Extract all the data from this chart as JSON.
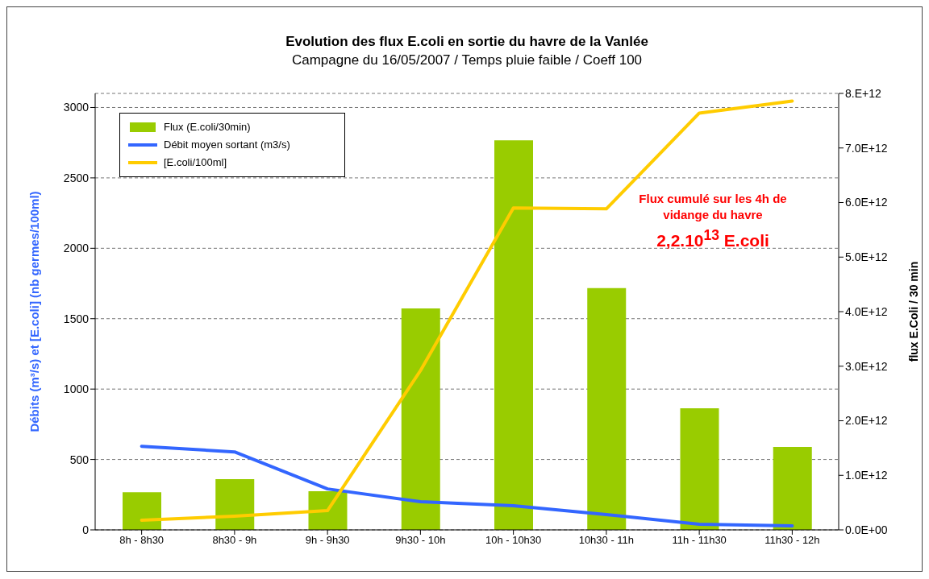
{
  "chart_data": {
    "type": "bar",
    "title": "Evolution des flux E.coli en sortie du havre de la Vanlée",
    "subtitle": "Campagne du 16/05/2007  / Temps pluie faible / Coeff 100",
    "ylabel": "Débits (m³/s) et [E.coli] (nb germes/100ml)",
    "y2label": "flux E.Coli / 30 min",
    "categories": [
      "8h - 8h30",
      "8h30 - 9h",
      "9h - 9h30",
      "9h30 - 10h",
      "10h - 10h30",
      "10h30 - 11h",
      "11h - 11h30",
      "11h30 - 12h"
    ],
    "series": [
      {
        "name": "Flux (E.coli/30min)",
        "axis": "y2",
        "color": "#99cc00",
        "values": [
          690000000000,
          930000000000,
          710000000000,
          4060000000000,
          7140000000000,
          4430000000000,
          2230000000000,
          1520000000000
        ]
      },
      {
        "name": "Débit moyen sortant (m3/s)",
        "type": "line",
        "color": "#3366ff",
        "values": [
          594,
          554,
          291,
          200,
          171,
          109,
          40,
          29
        ]
      },
      {
        "name": "[E.coli/100ml]",
        "type": "line",
        "color": "#ffcc00",
        "values": [
          69,
          97,
          137,
          1131,
          2286,
          2280,
          2960,
          3046
        ]
      }
    ],
    "ylim": [
      0,
      3100
    ],
    "yticks": [
      0,
      500,
      1000,
      1500,
      2000,
      2500,
      3000
    ],
    "y2lim": [
      0,
      8000000000000
    ],
    "y2ticks": [
      {
        "value": 0,
        "label": "0.0E+00"
      },
      {
        "value": 1000000000000,
        "label": "1.0E+12"
      },
      {
        "value": 2000000000000,
        "label": "2.0E+12"
      },
      {
        "value": 3000000000000,
        "label": "3.0E+12"
      },
      {
        "value": 4000000000000,
        "label": "4.0E+12"
      },
      {
        "value": 5000000000000,
        "label": "5.0E+12"
      },
      {
        "value": 6000000000000,
        "label": "6.0E+12"
      },
      {
        "value": 7000000000000,
        "label": "7.0E+12"
      },
      {
        "value": 8000000000000,
        "label": "8.E+12"
      }
    ],
    "annotations": [
      "Flux cumulé sur les 4h de vidange du havre",
      "2,2.10$^{13}$ E.coli"
    ],
    "grid": "y",
    "legend": "top left",
    "marker": "none",
    "line_style": "solid"
  }
}
